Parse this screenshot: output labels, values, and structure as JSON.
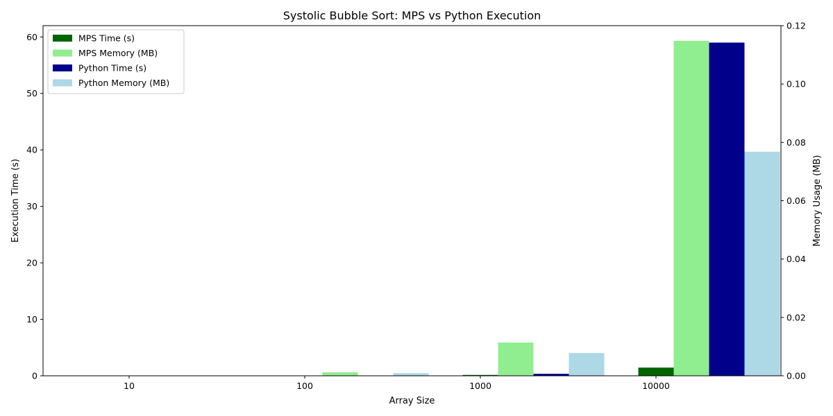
{
  "chart_data": {
    "type": "bar",
    "title": "Systolic Bubble Sort: MPS vs Python Execution",
    "xlabel": "Array Size",
    "ylabel_left": "Execution Time (s)",
    "ylabel_right": "Memory Usage (MB)",
    "categories": [
      "10",
      "100",
      "1000",
      "10000"
    ],
    "ylim_left": [
      0,
      62
    ],
    "yticks_left": [
      0,
      10,
      20,
      30,
      40,
      50,
      60
    ],
    "ylim_right": [
      0,
      0.12
    ],
    "yticks_right": [
      "0.00",
      "0.02",
      "0.04",
      "0.06",
      "0.08",
      "0.10",
      "0.12"
    ],
    "legend_position": "upper-left",
    "series": [
      {
        "name": "MPS Time (s)",
        "axis": "left",
        "color": "#006400",
        "values": [
          0.01,
          0.02,
          0.15,
          1.45
        ]
      },
      {
        "name": "MPS Memory (MB)",
        "axis": "right",
        "color": "#90ee90",
        "values": [
          0.0001,
          0.0012,
          0.0114,
          0.1148
        ]
      },
      {
        "name": "Python Time (s)",
        "axis": "left",
        "color": "#00008b",
        "values": [
          0.0,
          0.0,
          0.35,
          59.0
        ]
      },
      {
        "name": "Python Memory (MB)",
        "axis": "right",
        "color": "#add8e6",
        "values": [
          0.0001,
          0.0009,
          0.0078,
          0.0768
        ]
      }
    ]
  }
}
